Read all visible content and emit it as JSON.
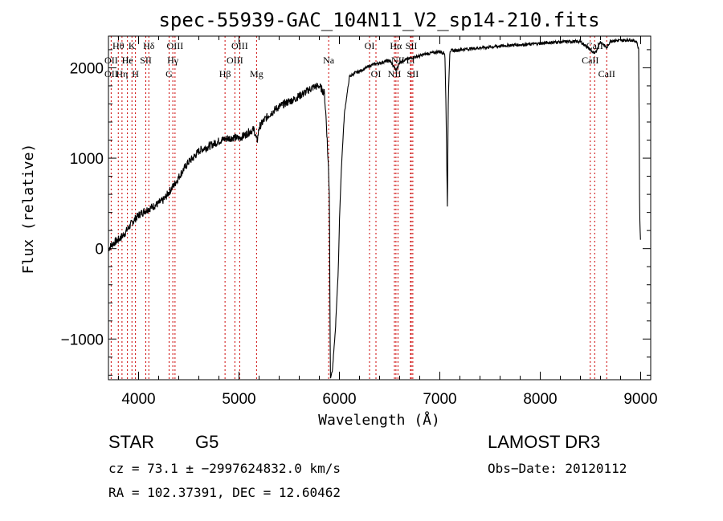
{
  "chart_data": {
    "type": "line",
    "title": "spec-55939-GAC_104N11_V2_sp14-210.fits",
    "xlabel": "Wavelength (Å)",
    "ylabel": "Flux (relative)",
    "xlim": [
      3700,
      9100
    ],
    "ylim": [
      -1450,
      2350
    ],
    "xticks": [
      4000,
      5000,
      6000,
      7000,
      8000,
      9000
    ],
    "xtick_labels": [
      "4000",
      "5000",
      "6000",
      "7000",
      "8000",
      "9000"
    ],
    "yticks": [
      -1000,
      0,
      1000,
      2000
    ],
    "ytick_labels": [
      "−1000",
      "0",
      "1000",
      "2000"
    ],
    "series": [
      {
        "name": "spectrum",
        "x": [
          3700,
          3750,
          3800,
          3850,
          3900,
          3950,
          4000,
          4050,
          4100,
          4150,
          4200,
          4250,
          4300,
          4350,
          4400,
          4450,
          4500,
          4550,
          4600,
          4650,
          4700,
          4750,
          4800,
          4850,
          4900,
          4950,
          5000,
          5050,
          5100,
          5150,
          5180,
          5200,
          5250,
          5300,
          5350,
          5400,
          5450,
          5500,
          5550,
          5600,
          5650,
          5700,
          5750,
          5800,
          5850,
          5870,
          5890,
          5900,
          5910,
          5930,
          5960,
          5990,
          6000,
          6020,
          6050,
          6100,
          6150,
          6200,
          6250,
          6300,
          6350,
          6400,
          6450,
          6500,
          6550,
          6563,
          6600,
          6650,
          6700,
          6750,
          6800,
          6850,
          6900,
          6950,
          7000,
          7050,
          7060,
          7075,
          7085,
          7100,
          7150,
          7200,
          7300,
          7400,
          7500,
          7600,
          7700,
          7800,
          7900,
          8000,
          8100,
          8200,
          8300,
          8400,
          8498,
          8542,
          8600,
          8662,
          8700,
          8800,
          8900,
          8960,
          8980,
          8990,
          9000
        ],
        "y": [
          0,
          60,
          100,
          150,
          230,
          310,
          370,
          410,
          440,
          470,
          500,
          540,
          620,
          700,
          790,
          880,
          960,
          1010,
          1080,
          1110,
          1130,
          1160,
          1190,
          1210,
          1220,
          1230,
          1220,
          1250,
          1290,
          1320,
          1180,
          1340,
          1420,
          1480,
          1530,
          1570,
          1600,
          1630,
          1650,
          1690,
          1720,
          1760,
          1790,
          1800,
          1720,
          1400,
          900,
          600,
          -1430,
          -1350,
          -900,
          -200,
          300,
          900,
          1500,
          1900,
          1940,
          1960,
          1990,
          2020,
          2040,
          2050,
          2070,
          2080,
          2000,
          1970,
          2060,
          2090,
          2100,
          2120,
          2130,
          2150,
          2160,
          2170,
          2180,
          2160,
          1650,
          480,
          1700,
          2190,
          2190,
          2200,
          2210,
          2220,
          2230,
          2240,
          2250,
          2255,
          2260,
          2270,
          2280,
          2285,
          2290,
          2290,
          2200,
          2150,
          2290,
          2220,
          2300,
          2300,
          2310,
          2290,
          2200,
          400,
          0
        ]
      }
    ],
    "lines": [
      {
        "name": "Hθ",
        "wl": 3798,
        "row": 1
      },
      {
        "name": "OII",
        "wl": 3727,
        "row": 2
      },
      {
        "name": "OII",
        "wl": 3727,
        "row": 3
      },
      {
        "name": "K",
        "wl": 3934,
        "row": 1
      },
      {
        "name": "Hε",
        "wl": 3889,
        "row": 2
      },
      {
        "name": "Hη",
        "wl": 3835,
        "row": 3
      },
      {
        "name": "He",
        "wl": 3889,
        "row": 2
      },
      {
        "name": "H",
        "wl": 3969,
        "row": 3
      },
      {
        "name": "Hδ",
        "wl": 4102,
        "row": 1
      },
      {
        "name": "SII",
        "wl": 4072,
        "row": 2
      },
      {
        "name": "OIII",
        "wl": 4363,
        "row": 1
      },
      {
        "name": "Hγ",
        "wl": 4341,
        "row": 2
      },
      {
        "name": "G",
        "wl": 4304,
        "row": 3
      },
      {
        "name": "OIII",
        "wl": 5007,
        "row": 1
      },
      {
        "name": "OIII",
        "wl": 4959,
        "row": 2
      },
      {
        "name": "Hβ",
        "wl": 4861,
        "row": 3
      },
      {
        "name": "Mg",
        "wl": 5175,
        "row": 3
      },
      {
        "name": "Na",
        "wl": 5893,
        "row": 2
      },
      {
        "name": "OI",
        "wl": 6300,
        "row": 1
      },
      {
        "name": "OI",
        "wl": 6364,
        "row": 3
      },
      {
        "name": "Hα",
        "wl": 6563,
        "row": 1
      },
      {
        "name": "SII",
        "wl": 6716,
        "row": 1
      },
      {
        "name": "NII",
        "wl": 6583,
        "row": 2
      },
      {
        "name": "Li",
        "wl": 6708,
        "row": 2
      },
      {
        "name": "NII",
        "wl": 6548,
        "row": 3
      },
      {
        "name": "SII",
        "wl": 6731,
        "row": 3
      },
      {
        "name": "CaII",
        "wl": 8542,
        "row": 1
      },
      {
        "name": "CaII",
        "wl": 8498,
        "row": 2
      },
      {
        "name": "CaII",
        "wl": 8662,
        "row": 3
      }
    ]
  },
  "info": {
    "class": "STAR",
    "subclass": "G5",
    "survey": "LAMOST DR3",
    "cz": "cz = 73.1 ± −2997624832.0 km/s",
    "obs_date": "Obs−Date: 20120112",
    "coords": "RA = 102.37391, DEC =  12.60462"
  },
  "colors": {
    "line_marker": "#cc0000",
    "spectrum": "#000000"
  }
}
